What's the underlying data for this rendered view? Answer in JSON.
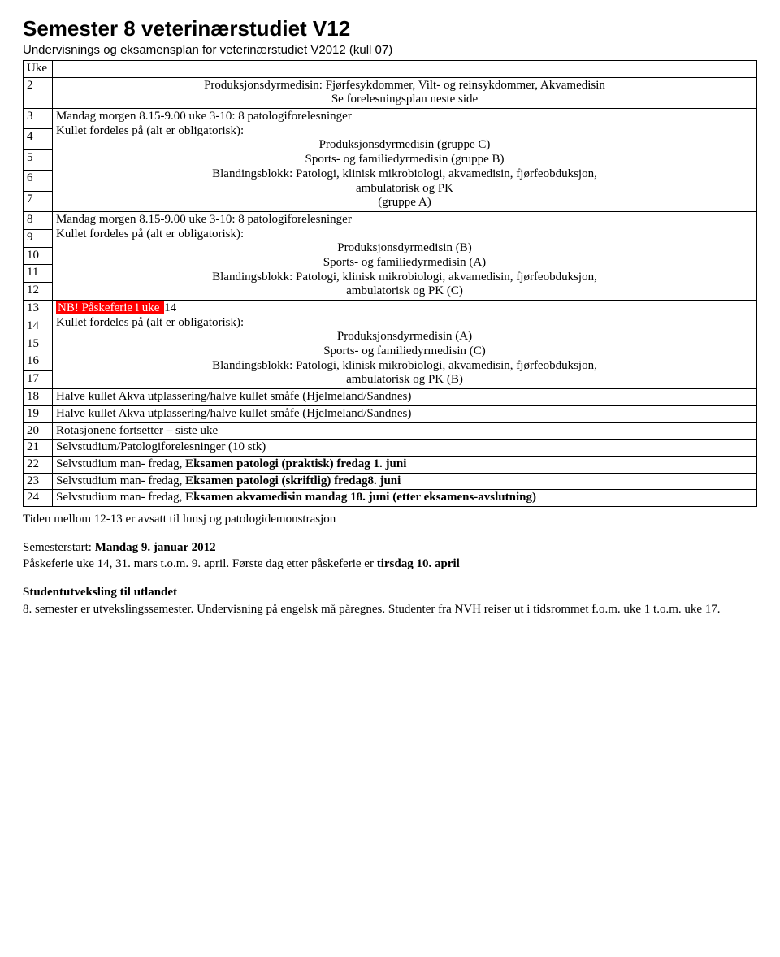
{
  "title": "Semester 8 veterinærstudiet V12",
  "subtitle": "Undervisnings og eksamensplan for veterinærstudiet V2012 (kull 07)",
  "header_uke": "Uke",
  "block2": {
    "weeks": [
      "2"
    ],
    "lines": [
      "Produksjonsdyrmedisin: Fjørfesykdommer, Vilt- og reinsykdommer, Akvamedisin",
      "Se forelesningsplan neste side"
    ]
  },
  "block3_7": {
    "weeks": [
      "3",
      "4",
      "5",
      "6",
      "7"
    ],
    "line1": "Mandag morgen 8.15-9.00 uke 3-10: 8 patologiforelesninger",
    "line2": "Kullet fordeles på (alt er obligatorisk):",
    "line3": "Produksjonsdyrmedisin (gruppe C)",
    "line4": "Sports- og familiedyrmedisin (gruppe B)",
    "line5": "Blandingsblokk: Patologi, klinisk mikrobiologi, akvamedisin, fjørfeobduksjon,",
    "line6": "ambulatorisk og PK",
    "line7": "(gruppe A)"
  },
  "block8_12": {
    "weeks": [
      "8",
      "9",
      "10",
      "11",
      "12"
    ],
    "line1": "Mandag morgen 8.15-9.00 uke 3-10: 8 patologiforelesninger",
    "line2": "Kullet fordeles på (alt er obligatorisk):",
    "line3": "Produksjonsdyrmedisin (B)",
    "line4": "Sports- og familiedyrmedisin (A)",
    "line5": "Blandingsblokk: Patologi, klinisk mikrobiologi, akvamedisin, fjørfeobduksjon,",
    "line6": "ambulatorisk og PK (C)"
  },
  "block13_17": {
    "weeks": [
      "13",
      "14",
      "15",
      "16",
      "17"
    ],
    "line1_hl": "NB! Påskeferie i uke ",
    "line1_tail": "14",
    "line2": "Kullet fordeles på (alt er obligatorisk):",
    "line3": "Produksjonsdyrmedisin (A)",
    "line4": "Sports- og familiedyrmedisin (C)",
    "line5": "Blandingsblokk: Patologi, klinisk mikrobiologi, akvamedisin, fjørfeobduksjon,",
    "line6": "ambulatorisk og PK (B)"
  },
  "rows_single": {
    "r18": {
      "week": "18",
      "text": "Halve kullet Akva utplassering/halve kullet småfe (Hjelmeland/Sandnes)"
    },
    "r19": {
      "week": "19",
      "text": "Halve kullet Akva utplassering/halve kullet småfe (Hjelmeland/Sandnes)"
    },
    "r20": {
      "week": "20",
      "text": "Rotasjonene fortsetter – siste uke"
    },
    "r21": {
      "week": "21",
      "text": "Selvstudium/Patologiforelesninger (10 stk)"
    },
    "r22": {
      "week": "22",
      "pre": "Selvstudium man- fredag, ",
      "bold": "Eksamen patologi (praktisk) fredag 1. juni"
    },
    "r23": {
      "week": "23",
      "pre": "Selvstudium man- fredag, ",
      "bold": "Eksamen patologi (skriftlig) fredag8. juni"
    },
    "r24": {
      "week": "24",
      "pre": "Selvstudium man- fredag, ",
      "bold": "Eksamen akvamedisin mandag 18. juni (etter eksamens-avslutning)"
    }
  },
  "footer": {
    "lunch": "Tiden mellom 12-13 er avsatt til lunsj og patologidemonstrasjon",
    "semstart_pre": "Semesterstart: ",
    "semstart_bold": "Mandag 9. januar 2012",
    "easter_pre": "Påskeferie uke 14, 31. mars t.o.m. 9. april. Første dag etter påskeferie er ",
    "easter_bold": "tirsdag 10. april",
    "exchange_head": "Studentutveksling til utlandet",
    "exchange_body": "8. semester er utvekslingssemester. Undervisning på engelsk må påregnes. Studenter fra NVH reiser ut i tidsrommet f.o.m. uke 1 t.o.m. uke 17."
  }
}
